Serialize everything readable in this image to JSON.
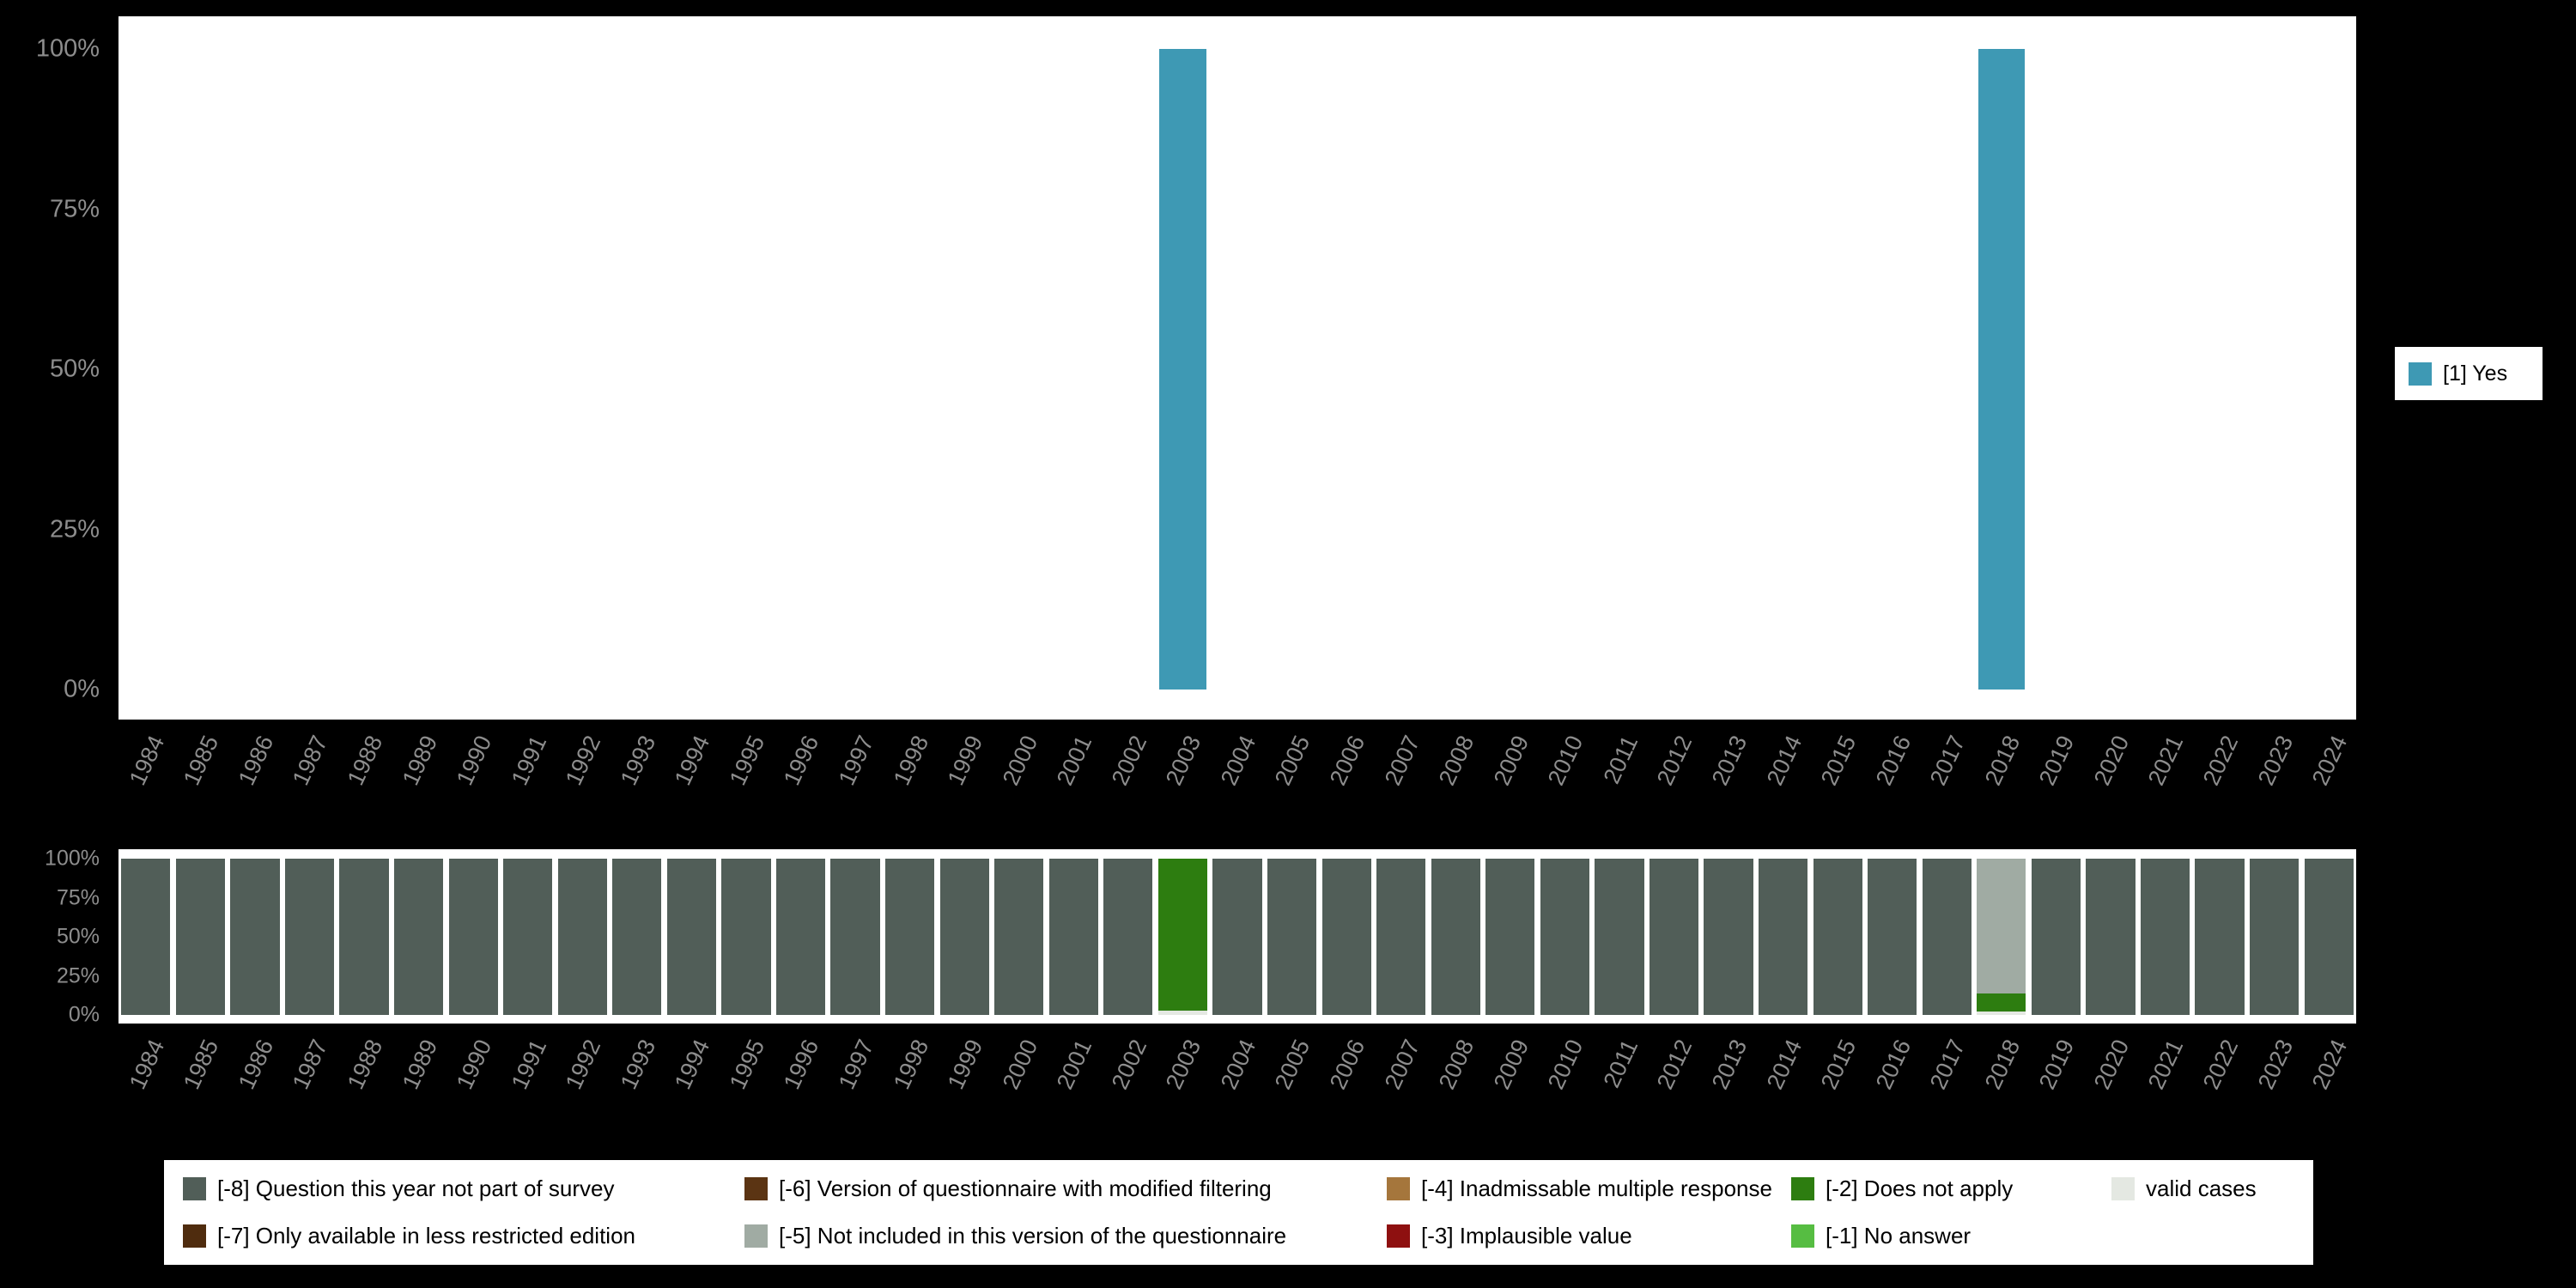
{
  "colors": {
    "background": "#000000",
    "plot_background": "#ffffff",
    "axis_text": "#8d8d8d"
  },
  "y_ticks": [
    "100%",
    "75%",
    "50%",
    "25%",
    "0%"
  ],
  "legend_right": {
    "label": "[1] Yes",
    "color": "#3e99b4"
  },
  "missing_categories": [
    {
      "key": "m8",
      "label": "[-8] Question this year not part of survey",
      "color": "#515e58",
      "row": 1,
      "col": 1
    },
    {
      "key": "m6",
      "label": "[-6] Version of questionnaire with modified filtering",
      "color": "#5b3413",
      "row": 1,
      "col": 2
    },
    {
      "key": "m4",
      "label": "[-4] Inadmissable multiple response",
      "color": "#a5763c",
      "row": 1,
      "col": 3
    },
    {
      "key": "m2",
      "label": "[-2] Does not apply",
      "color": "#2d7d10",
      "row": 1,
      "col": 4
    },
    {
      "key": "valid",
      "label": "valid cases",
      "color": "#e4e8e2",
      "row": 1,
      "col": 5
    },
    {
      "key": "m7",
      "label": "[-7] Only available in less restricted edition",
      "color": "#4f2c0e",
      "row": 2,
      "col": 1
    },
    {
      "key": "m5",
      "label": "[-5] Not included in this version of the questionnaire",
      "color": "#a0aba3",
      "row": 2,
      "col": 2
    },
    {
      "key": "m3",
      "label": "[-3] Implausible value",
      "color": "#8e1010",
      "row": 2,
      "col": 3
    },
    {
      "key": "m1",
      "label": "[-1] No answer",
      "color": "#56bd42",
      "row": 2,
      "col": 4
    }
  ],
  "chart_data": [
    {
      "type": "bar",
      "title": "",
      "x": [
        "1984",
        "1985",
        "1986",
        "1987",
        "1988",
        "1989",
        "1990",
        "1991",
        "1992",
        "1993",
        "1994",
        "1995",
        "1996",
        "1997",
        "1998",
        "1999",
        "2000",
        "2001",
        "2002",
        "2003",
        "2004",
        "2005",
        "2006",
        "2007",
        "2008",
        "2009",
        "2010",
        "2011",
        "2012",
        "2013",
        "2014",
        "2015",
        "2016",
        "2017",
        "2018",
        "2019",
        "2020",
        "2021",
        "2022",
        "2023",
        "2024"
      ],
      "series": [
        {
          "name": "[1] Yes",
          "color": "#3e99b4",
          "values": [
            0,
            0,
            0,
            0,
            0,
            0,
            0,
            0,
            0,
            0,
            0,
            0,
            0,
            0,
            0,
            0,
            0,
            0,
            0,
            100,
            0,
            0,
            0,
            0,
            0,
            0,
            0,
            0,
            0,
            0,
            0,
            0,
            0,
            0,
            100,
            0,
            0,
            0,
            0,
            0,
            0
          ]
        }
      ],
      "xlabel": "",
      "ylabel": "",
      "ylim": [
        0,
        100
      ],
      "y_tick_labels": [
        "0%",
        "25%",
        "50%",
        "75%",
        "100%"
      ],
      "grid": false,
      "legend_position": "right"
    },
    {
      "type": "bar",
      "stacked": true,
      "stack_order": "bottom-to-top",
      "title": "",
      "x": [
        "1984",
        "1985",
        "1986",
        "1987",
        "1988",
        "1989",
        "1990",
        "1991",
        "1992",
        "1993",
        "1994",
        "1995",
        "1996",
        "1997",
        "1998",
        "1999",
        "2000",
        "2001",
        "2002",
        "2003",
        "2004",
        "2005",
        "2006",
        "2007",
        "2008",
        "2009",
        "2010",
        "2011",
        "2012",
        "2013",
        "2014",
        "2015",
        "2016",
        "2017",
        "2018",
        "2019",
        "2020",
        "2021",
        "2022",
        "2023",
        "2024"
      ],
      "series": [
        {
          "name": "valid cases",
          "color": "#e4e8e2",
          "values": [
            0,
            0,
            0,
            0,
            0,
            0,
            0,
            0,
            0,
            0,
            0,
            0,
            0,
            0,
            0,
            0,
            0,
            0,
            0,
            3,
            0,
            0,
            0,
            0,
            0,
            0,
            0,
            0,
            0,
            0,
            0,
            0,
            0,
            0,
            2,
            0,
            0,
            0,
            0,
            0,
            0
          ]
        },
        {
          "name": "[-2] Does not apply",
          "color": "#2d7d10",
          "values": [
            0,
            0,
            0,
            0,
            0,
            0,
            0,
            0,
            0,
            0,
            0,
            0,
            0,
            0,
            0,
            0,
            0,
            0,
            0,
            97,
            0,
            0,
            0,
            0,
            0,
            0,
            0,
            0,
            0,
            0,
            0,
            0,
            0,
            0,
            12,
            0,
            0,
            0,
            0,
            0,
            0
          ]
        },
        {
          "name": "[-5] Not included in this version of the questionnaire",
          "color": "#a0aba3",
          "values": [
            0,
            0,
            0,
            0,
            0,
            0,
            0,
            0,
            0,
            0,
            0,
            0,
            0,
            0,
            0,
            0,
            0,
            0,
            0,
            0,
            0,
            0,
            0,
            0,
            0,
            0,
            0,
            0,
            0,
            0,
            0,
            0,
            0,
            0,
            86,
            0,
            0,
            0,
            0,
            0,
            0
          ]
        },
        {
          "name": "[-8] Question this year not part of survey",
          "color": "#515e58",
          "values": [
            100,
            100,
            100,
            100,
            100,
            100,
            100,
            100,
            100,
            100,
            100,
            100,
            100,
            100,
            100,
            100,
            100,
            100,
            100,
            0,
            100,
            100,
            100,
            100,
            100,
            100,
            100,
            100,
            100,
            100,
            100,
            100,
            100,
            100,
            0,
            100,
            100,
            100,
            100,
            100,
            100
          ]
        }
      ],
      "xlabel": "",
      "ylabel": "",
      "ylim": [
        0,
        100
      ],
      "y_tick_labels": [
        "0%",
        "25%",
        "50%",
        "75%",
        "100%"
      ],
      "grid": false,
      "legend_position": "bottom"
    }
  ]
}
